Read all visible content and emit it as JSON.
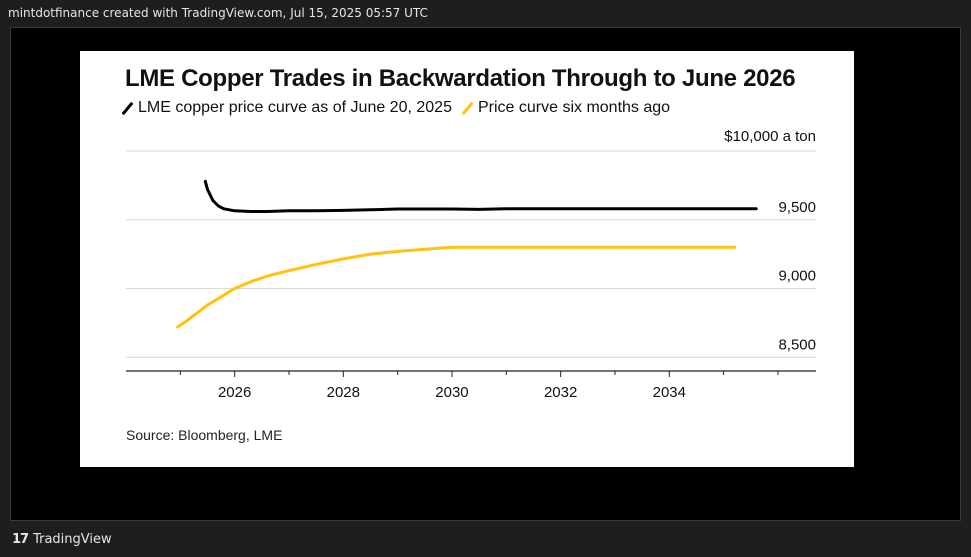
{
  "header": {
    "caption": "mintdotfinance created with TradingView.com, Jul 15, 2025 05:57 UTC"
  },
  "footer": {
    "logo_icon": "tradingview-logo-icon",
    "logo_glyph": "17",
    "brand": "TradingView"
  },
  "chart_data": {
    "type": "line",
    "title": "LME Copper Trades in Backwardation Through to June 2026",
    "unit_label": "$10,000 a ton",
    "source": "Source: Bloomberg, LME",
    "x_ticks": [
      "2026",
      "2028",
      "2030",
      "2032",
      "2034"
    ],
    "x_tick_values": [
      2026,
      2028,
      2030,
      2032,
      2034
    ],
    "y_ticks": [
      "9,500",
      "9,000",
      "8,500"
    ],
    "y_tick_values": [
      9500,
      9000,
      8500
    ],
    "xlim": [
      2024.0,
      2036.7
    ],
    "ylim": [
      8400,
      10000
    ],
    "grid": true,
    "series": [
      {
        "name": "LME copper price curve as of June 20, 2025",
        "color": "#000000",
        "x": [
          2025.46,
          2025.5,
          2025.55,
          2025.6,
          2025.7,
          2025.8,
          2026.0,
          2026.3,
          2026.6,
          2027.0,
          2027.5,
          2028.0,
          2028.5,
          2029.0,
          2030.0,
          2030.5,
          2031.0,
          2032.0,
          2033.0,
          2034.0,
          2035.0,
          2035.6
        ],
        "values": [
          9780,
          9720,
          9680,
          9640,
          9600,
          9580,
          9565,
          9560,
          9560,
          9565,
          9565,
          9568,
          9572,
          9578,
          9578,
          9575,
          9580,
          9580,
          9580,
          9580,
          9580,
          9580
        ]
      },
      {
        "name": "Price curve six months ago",
        "color": "#FFC20E",
        "x": [
          2024.95,
          2025.1,
          2025.3,
          2025.5,
          2025.75,
          2026.0,
          2026.3,
          2026.6,
          2027.0,
          2027.5,
          2028.0,
          2028.5,
          2029.0,
          2029.5,
          2030.0,
          2031.0,
          2032.0,
          2033.0,
          2034.0,
          2035.0,
          2035.2
        ],
        "values": [
          8720,
          8760,
          8820,
          8880,
          8940,
          9000,
          9050,
          9090,
          9130,
          9175,
          9215,
          9250,
          9270,
          9285,
          9300,
          9300,
          9300,
          9300,
          9300,
          9300,
          9300
        ]
      }
    ]
  }
}
